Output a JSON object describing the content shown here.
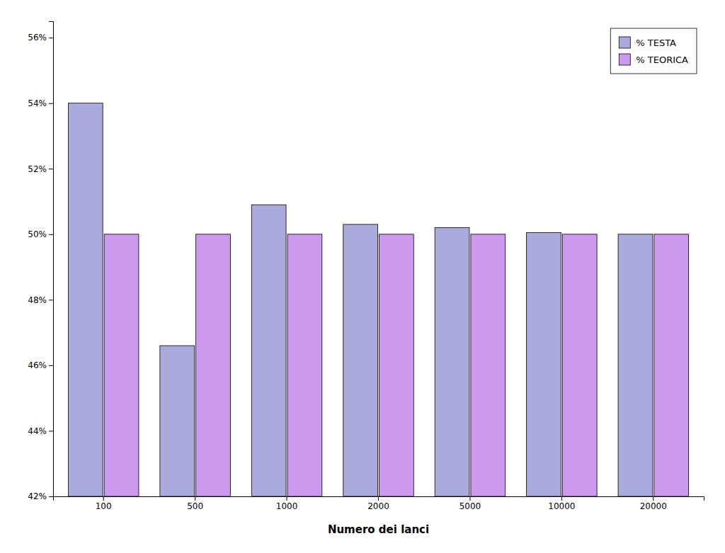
{
  "chart_data": {
    "type": "bar",
    "xlabel": "Numero dei lanci",
    "categories": [
      "100",
      "500",
      "1000",
      "2000",
      "5000",
      "10000",
      "20000"
    ],
    "series": [
      {
        "name": "% TESTA",
        "color": "#aaaadd",
        "values": [
          0.54,
          0.466,
          0.509,
          0.503,
          0.502,
          0.5005,
          0.5
        ]
      },
      {
        "name": "% TEORICA",
        "color": "#cc99ee",
        "values": [
          0.5,
          0.5,
          0.5,
          0.5,
          0.5,
          0.5,
          0.5
        ]
      }
    ],
    "ylim": [
      0.42,
      0.565
    ],
    "yticks": [
      {
        "value": 0.42,
        "label": "42%"
      },
      {
        "value": 0.44,
        "label": "44%"
      },
      {
        "value": 0.46,
        "label": "46%"
      },
      {
        "value": 0.48,
        "label": "48%"
      },
      {
        "value": 0.5,
        "label": "50%"
      },
      {
        "value": 0.52,
        "label": "52%"
      },
      {
        "value": 0.54,
        "label": "54%"
      },
      {
        "value": 0.56,
        "label": "56%"
      }
    ],
    "grid": false,
    "legend": "top-right"
  }
}
